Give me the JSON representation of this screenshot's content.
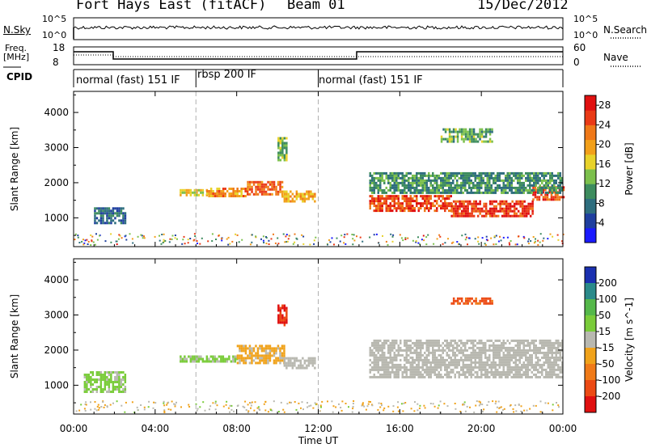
{
  "header": {
    "station": "Fort Hays East (fitACF)",
    "beam": "Beam 01",
    "date": "15/Dec/2012"
  },
  "summary_panel": {
    "nsky_label": "N.Sky",
    "nsky_ticks": [
      "10^5",
      "10^0"
    ],
    "nsearch_label": "N.Search",
    "nsearch_ticks": [
      "10^5",
      "10^0"
    ],
    "freq_label": "Freq.",
    "freq_unit": "[MHz]",
    "freq_ticks": [
      "18",
      "8"
    ],
    "nave_label": "Nave",
    "nave_ticks": [
      "60",
      "0"
    ],
    "cpid_label": "CPID",
    "modes": [
      {
        "name": "normal (fast) 151 IF",
        "start_hour": 0,
        "end_hour": 6
      },
      {
        "name": "rbsp 200 IF",
        "start_hour": 6,
        "end_hour": 12
      },
      {
        "name": "normal (fast) 151 IF",
        "start_hour": 12,
        "end_hour": 24
      }
    ]
  },
  "chart_data": [
    {
      "type": "heatmap",
      "parameter": "Power",
      "ylabel": "Slant Range [km]",
      "xlabel": "Time UT",
      "xlim": [
        0,
        24
      ],
      "ylim": [
        180,
        4600
      ],
      "x_ticks": [
        "00:00",
        "04:00",
        "08:00",
        "12:00",
        "16:00",
        "20:00",
        "00:00"
      ],
      "y_ticks": [
        1000,
        2000,
        3000,
        4000
      ],
      "colorbar": {
        "label": "Power [dB]",
        "ticks": [
          4,
          8,
          12,
          16,
          20,
          24,
          28
        ],
        "range": [
          0,
          30
        ],
        "colors": [
          "#1a1aff",
          "#1f3f9f",
          "#2e6e7e",
          "#3d8c5e",
          "#7cc04c",
          "#e8d22a",
          "#f2a01a",
          "#ef7818",
          "#ea3a16",
          "#e01010"
        ]
      },
      "echo_bands": [
        {
          "t0": 5.2,
          "t1": 6.5,
          "r0": 1680,
          "r1": 1820,
          "value": 17
        },
        {
          "t0": 6.5,
          "t1": 8.5,
          "r0": 1620,
          "r1": 1860,
          "value": 21
        },
        {
          "t0": 8.5,
          "t1": 10.2,
          "r0": 1700,
          "r1": 2050,
          "value": 23
        },
        {
          "t0": 10.2,
          "t1": 11.8,
          "r0": 1480,
          "r1": 1780,
          "value": 19
        },
        {
          "t0": 14.5,
          "t1": 18.5,
          "r0": 1200,
          "r1": 1650,
          "value": 25
        },
        {
          "t0": 18.5,
          "t1": 22.5,
          "r0": 1050,
          "r1": 1500,
          "value": 26
        },
        {
          "t0": 22.5,
          "t1": 24.0,
          "r0": 1500,
          "r1": 1900,
          "value": 25
        },
        {
          "t0": 14.5,
          "t1": 24.0,
          "r0": 1700,
          "r1": 2300,
          "value": 10
        },
        {
          "t0": 1.0,
          "t1": 2.5,
          "r0": 880,
          "r1": 1300,
          "value": 7
        },
        {
          "t0": 10.0,
          "t1": 10.4,
          "r0": 2650,
          "r1": 3300,
          "value": 14
        },
        {
          "t0": 18.0,
          "t1": 20.5,
          "r0": 3200,
          "r1": 3550,
          "value": 12
        }
      ]
    },
    {
      "type": "heatmap",
      "parameter": "Velocity",
      "ylabel": "Slant Range [km]",
      "xlabel": "Time UT",
      "xlim": [
        0,
        24
      ],
      "ylim": [
        180,
        4600
      ],
      "x_ticks": [
        "00:00",
        "04:00",
        "08:00",
        "12:00",
        "16:00",
        "20:00",
        "00:00"
      ],
      "y_ticks": [
        1000,
        2000,
        3000,
        4000
      ],
      "colorbar": {
        "label": "Velocity [m s^-1]",
        "ticks": [
          200,
          100,
          50,
          15,
          -15,
          -50,
          -100,
          -200
        ],
        "range": [
          -250,
          250
        ],
        "colors": [
          "#1a30b0",
          "#2a8a8a",
          "#55b84a",
          "#7acc3a",
          "#b8b8b0",
          "#f0a21a",
          "#f07a18",
          "#ec4a14",
          "#e01010"
        ]
      },
      "echo_bands": [
        {
          "t0": 5.2,
          "t1": 8.0,
          "r0": 1680,
          "r1": 1850,
          "value": 40
        },
        {
          "t0": 8.0,
          "t1": 10.3,
          "r0": 1650,
          "r1": 2150,
          "value": -40
        },
        {
          "t0": 10.3,
          "t1": 11.8,
          "r0": 1500,
          "r1": 1800,
          "value": 0
        },
        {
          "t0": 14.5,
          "t1": 24.0,
          "r0": 1200,
          "r1": 2300,
          "value": 0
        },
        {
          "t0": 0.5,
          "t1": 2.5,
          "r0": 800,
          "r1": 1400,
          "value": 40
        },
        {
          "t0": 10.0,
          "t1": 10.4,
          "r0": 2700,
          "r1": 3300,
          "value": -200
        },
        {
          "t0": 18.5,
          "t1": 20.5,
          "r0": 3300,
          "r1": 3500,
          "value": -150
        }
      ]
    }
  ],
  "colors": {
    "axes": "#000000",
    "mode_divider": "#b0b0b0"
  }
}
